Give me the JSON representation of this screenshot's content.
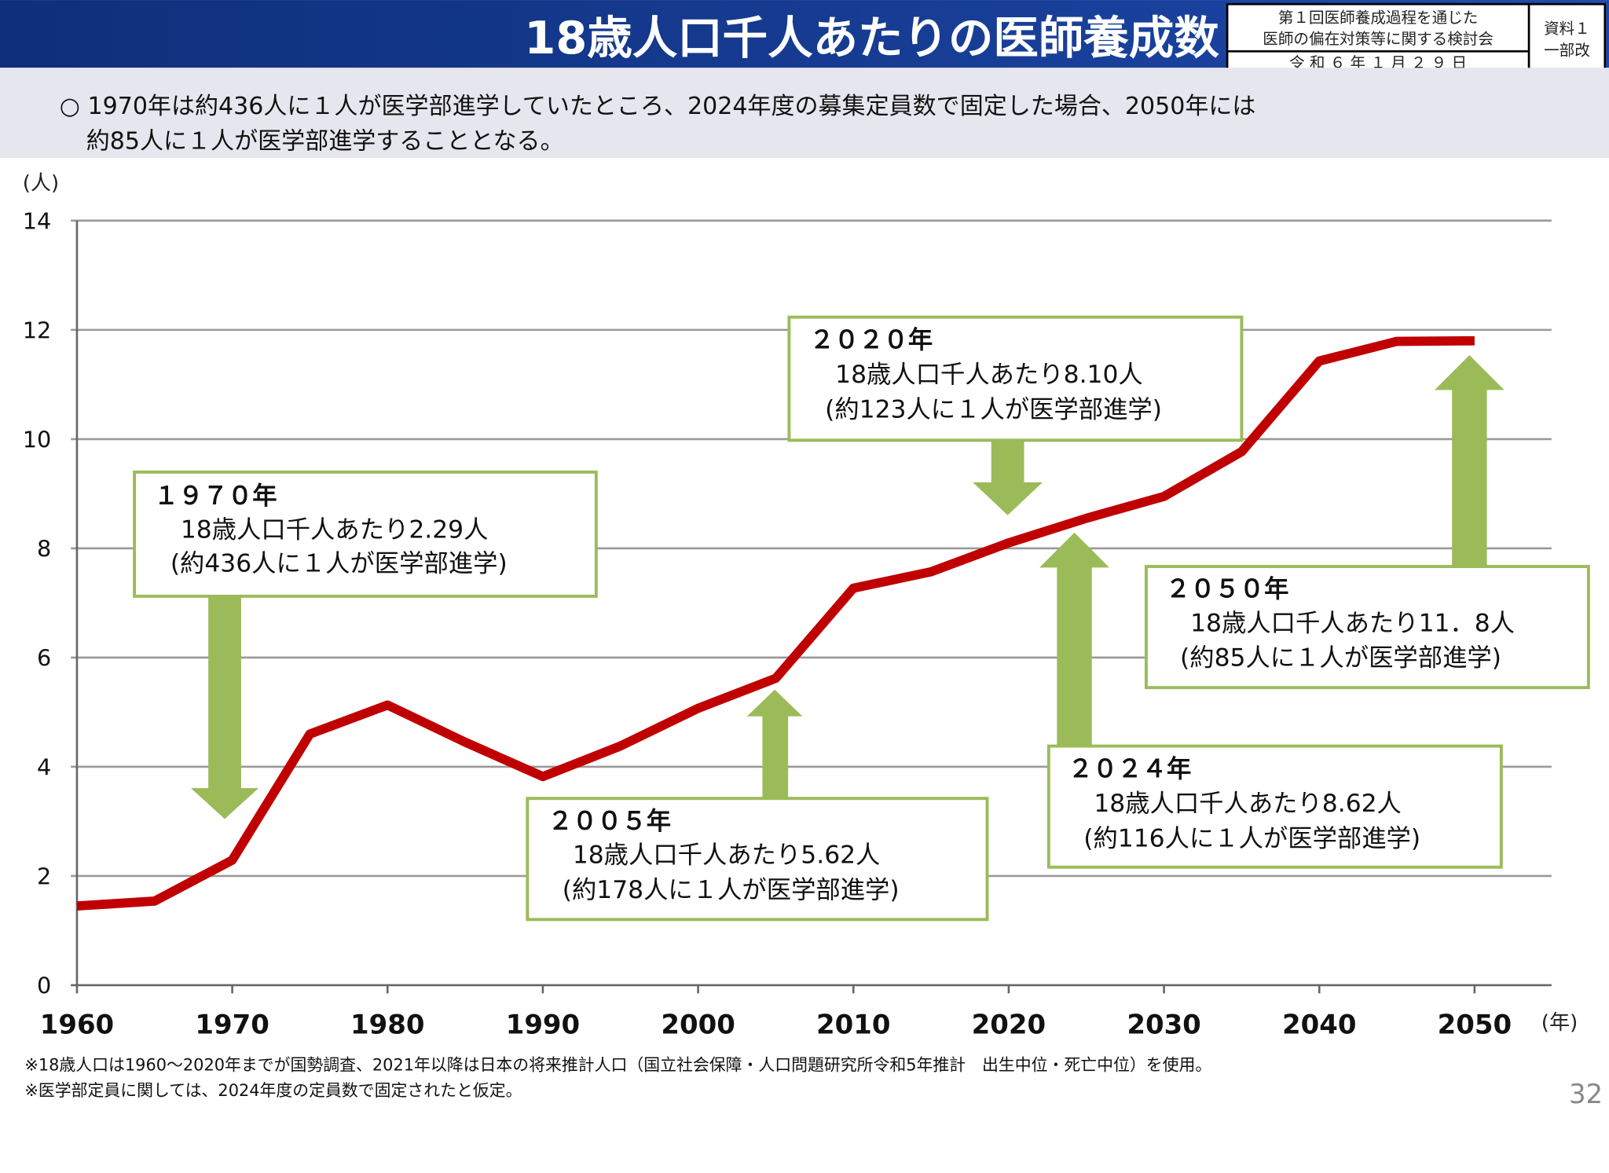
{
  "header": {
    "title": "18歳人口千人あたりの医師養成数",
    "meeting_line1": "第１回医師養成過程を通じた",
    "meeting_line2": "医師の偏在対策等に関する検討会",
    "date": "令 和 ６ 年 １ 月 ２ ９ 日",
    "doc_line1": "資料１",
    "doc_line2": "一部改"
  },
  "summary": {
    "line1": "○ 1970年は約436人に１人が医学部進学していたところ、2024年度の募集定員数で固定した場合、2050年には",
    "line2": "約85人に１人が医学部進学することとなる。"
  },
  "callouts": [
    {
      "year": "１９７０年",
      "line1": "18歳人口千人あたり2.29人",
      "line2": "(約436人に１人が医学部進学)"
    },
    {
      "year": "２００５年",
      "line1": "18歳人口千人あたり5.62人",
      "line2": "(約178人に１人が医学部進学)"
    },
    {
      "year": "２０２０年",
      "line1": "18歳人口千人あたり8.10人",
      "line2": "(約123人に１人が医学部進学)"
    },
    {
      "year": "２０２４年",
      "line1": "18歳人口千人あたり8.62人",
      "line2": "(約116人に１人が医学部進学)"
    },
    {
      "year": "２０５０年",
      "line1": "18歳人口千人あたり11．8人",
      "line2": "(約85人に１人が医学部進学)"
    }
  ],
  "notes": {
    "note1": "※18歳人口は1960～2020年までが国勢調査、2021年以降は日本の将来推計人口（国立社会保障・人口問題研究所令和5年推計　出生中位・死亡中位）を使用。",
    "note2": "※医学部定員に関しては、2024年度の定員数で固定されたと仮定。"
  },
  "page_number": "32",
  "colors": {
    "title_bar": "#1a3d8f",
    "line": "#c00000",
    "callout": "#9bbb59",
    "summary_bg": "#e6e6ee"
  },
  "chart_data": {
    "type": "line",
    "xlabel": "(年)",
    "ylabel": "(人)",
    "xlim": [
      1960,
      2050
    ],
    "ylim": [
      0,
      14
    ],
    "x_ticks": [
      1960,
      1970,
      1980,
      1990,
      2000,
      2010,
      2020,
      2030,
      2040,
      2050
    ],
    "y_ticks": [
      0,
      2,
      4,
      6,
      8,
      10,
      12,
      14
    ],
    "grid": true,
    "x": [
      1960,
      1965,
      1970,
      1975,
      1980,
      1985,
      1990,
      1995,
      2000,
      2005,
      2010,
      2015,
      2020,
      2025,
      2030,
      2035,
      2040,
      2045,
      2050
    ],
    "values": [
      1.45,
      1.54,
      2.29,
      4.6,
      5.13,
      4.45,
      3.82,
      4.38,
      5.07,
      5.62,
      7.27,
      7.57,
      8.1,
      8.55,
      8.95,
      9.77,
      11.43,
      11.79,
      11.8
    ]
  }
}
